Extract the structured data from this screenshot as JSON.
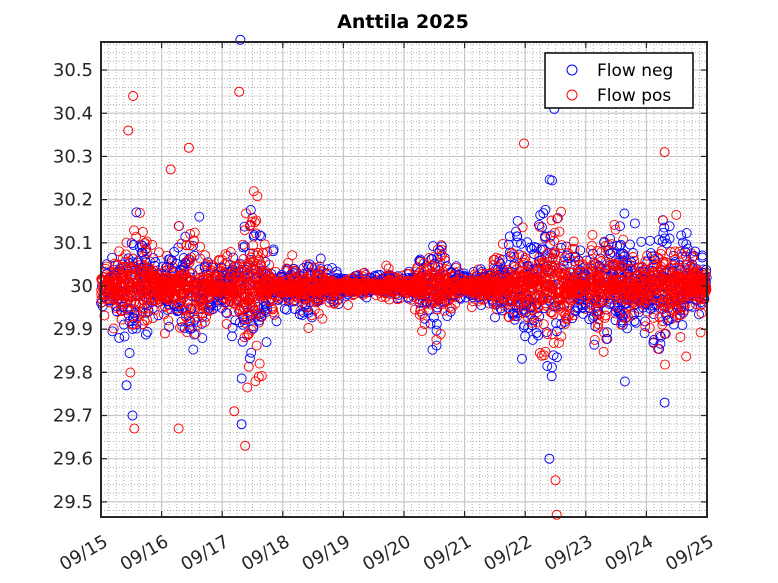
{
  "chart_data": {
    "type": "scatter",
    "title": "Anttila 2025",
    "xlabel": "",
    "ylabel": "",
    "x_ticks": [
      "09/15",
      "09/16",
      "09/17",
      "09/18",
      "09/19",
      "09/20",
      "09/21",
      "09/22",
      "09/23",
      "09/24",
      "09/25"
    ],
    "y_ticks": [
      "29.5",
      "29.6",
      "29.7",
      "29.8",
      "29.9",
      "30",
      "30.1",
      "30.2",
      "30.3",
      "30.4",
      "30.5"
    ],
    "xlim": [
      "09/15",
      "09/25"
    ],
    "ylim": [
      29.465,
      30.565
    ],
    "grid": true,
    "minor_grid": true,
    "legend_position": "top-right",
    "series": [
      {
        "name": "Flow neg",
        "color": "#0000ff",
        "marker": "open-circle"
      },
      {
        "name": "Flow pos",
        "color": "#ff0000",
        "marker": "open-circle"
      }
    ],
    "spread_profile_days": [
      0,
      0.25,
      0.5,
      0.75,
      1,
      1.25,
      1.5,
      1.75,
      2,
      2.25,
      2.5,
      2.75,
      3,
      3.25,
      3.5,
      3.75,
      4,
      4.25,
      4.5,
      4.75,
      5,
      5.25,
      5.5,
      5.75,
      6,
      6.25,
      6.5,
      6.75,
      7,
      7.25,
      7.5,
      7.75,
      8,
      8.25,
      8.5,
      8.75,
      9,
      9.25,
      9.5,
      9.75,
      10
    ],
    "spread_profile_values": [
      0.05,
      0.08,
      0.16,
      0.09,
      0.06,
      0.1,
      0.15,
      0.07,
      0.06,
      0.09,
      0.2,
      0.07,
      0.04,
      0.05,
      0.06,
      0.035,
      0.02,
      0.025,
      0.015,
      0.03,
      0.02,
      0.05,
      0.13,
      0.04,
      0.03,
      0.04,
      0.05,
      0.09,
      0.11,
      0.13,
      0.2,
      0.07,
      0.06,
      0.12,
      0.1,
      0.09,
      0.08,
      0.12,
      0.14,
      0.07,
      0.04
    ],
    "outliers": [
      {
        "day": 0.45,
        "value": 30.36,
        "series": "Flow pos"
      },
      {
        "day": 0.53,
        "value": 30.44,
        "series": "Flow pos"
      },
      {
        "day": 0.55,
        "value": 29.67,
        "series": "Flow pos"
      },
      {
        "day": 0.52,
        "value": 29.7,
        "series": "Flow neg"
      },
      {
        "day": 0.42,
        "value": 29.77,
        "series": "Flow neg"
      },
      {
        "day": 1.15,
        "value": 30.27,
        "series": "Flow pos"
      },
      {
        "day": 1.28,
        "value": 29.67,
        "series": "Flow pos"
      },
      {
        "day": 1.45,
        "value": 30.32,
        "series": "Flow pos"
      },
      {
        "day": 2.3,
        "value": 30.57,
        "series": "Flow neg"
      },
      {
        "day": 2.28,
        "value": 30.45,
        "series": "Flow pos"
      },
      {
        "day": 2.32,
        "value": 29.68,
        "series": "Flow neg"
      },
      {
        "day": 2.38,
        "value": 29.63,
        "series": "Flow pos"
      },
      {
        "day": 2.2,
        "value": 29.71,
        "series": "Flow pos"
      },
      {
        "day": 7.48,
        "value": 30.41,
        "series": "Flow neg"
      },
      {
        "day": 7.4,
        "value": 29.6,
        "series": "Flow neg"
      },
      {
        "day": 7.5,
        "value": 29.55,
        "series": "Flow pos"
      },
      {
        "day": 7.52,
        "value": 29.47,
        "series": "Flow pos"
      },
      {
        "day": 6.98,
        "value": 30.33,
        "series": "Flow pos"
      },
      {
        "day": 9.3,
        "value": 30.31,
        "series": "Flow pos"
      },
      {
        "day": 9.3,
        "value": 29.73,
        "series": "Flow neg"
      }
    ]
  }
}
